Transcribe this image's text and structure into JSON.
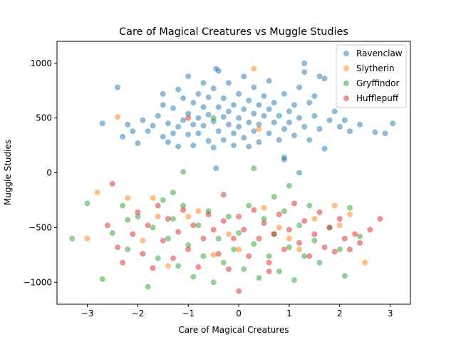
{
  "chart_data": {
    "type": "scatter",
    "title": "Care of Magical Creatures vs Muggle Studies",
    "xlabel": "Care of Magical Creatures",
    "ylabel": "Muggle Studies",
    "xlim": [
      -3.6,
      3.4
    ],
    "ylim": [
      -1200,
      1200
    ],
    "xticks": [
      -3,
      -2,
      -1,
      0,
      1,
      2,
      3
    ],
    "yticks": [
      -1000,
      -500,
      0,
      500,
      1000
    ],
    "grid": false,
    "legend_position": "top-right",
    "series": [
      {
        "name": "Ravenclaw",
        "color": "#1f77b4",
        "points": [
          [
            -2.4,
            780
          ],
          [
            -2.7,
            450
          ],
          [
            -2.3,
            330
          ],
          [
            -2.2,
            440
          ],
          [
            -2.1,
            380
          ],
          [
            -2.0,
            270
          ],
          [
            -1.9,
            480
          ],
          [
            -1.8,
            380
          ],
          [
            -1.7,
            430
          ],
          [
            -1.6,
            520
          ],
          [
            -1.5,
            330
          ],
          [
            -1.5,
            720
          ],
          [
            -1.5,
            620
          ],
          [
            -1.4,
            450
          ],
          [
            -1.4,
            280
          ],
          [
            -1.3,
            360
          ],
          [
            -1.3,
            590
          ],
          [
            -1.2,
            420
          ],
          [
            -1.2,
            760
          ],
          [
            -1.2,
            240
          ],
          [
            -1.1,
            480
          ],
          [
            -1.1,
            680
          ],
          [
            -1.0,
            880
          ],
          [
            -1.0,
            540
          ],
          [
            -1.0,
            350
          ],
          [
            -0.9,
            640
          ],
          [
            -0.9,
            440
          ],
          [
            -0.9,
            250
          ],
          [
            -0.8,
            720
          ],
          [
            -0.8,
            500
          ],
          [
            -0.8,
            360
          ],
          [
            -0.7,
            600
          ],
          [
            -0.7,
            820
          ],
          [
            -0.7,
            430
          ],
          [
            -0.6,
            290
          ],
          [
            -0.6,
            530
          ],
          [
            -0.6,
            690
          ],
          [
            -0.5,
            470
          ],
          [
            -0.5,
            230
          ],
          [
            -0.5,
            770
          ],
          [
            -0.4,
            600
          ],
          [
            -0.4,
            380
          ],
          [
            -0.4,
            930
          ],
          [
            -0.3,
            510
          ],
          [
            -0.3,
            680
          ],
          [
            -0.3,
            300
          ],
          [
            -0.2,
            440
          ],
          [
            -0.2,
            820
          ],
          [
            -0.2,
            560
          ],
          [
            -0.1,
            620
          ],
          [
            -0.1,
            360
          ],
          [
            -0.1,
            250
          ],
          [
            0.0,
            500
          ],
          [
            0.0,
            720
          ],
          [
            0.0,
            420
          ],
          [
            0.1,
            580
          ],
          [
            0.1,
            880
          ],
          [
            0.1,
            320
          ],
          [
            0.2,
            460
          ],
          [
            0.2,
            660
          ],
          [
            0.2,
            240
          ],
          [
            0.3,
            540
          ],
          [
            0.3,
            780
          ],
          [
            0.3,
            380
          ],
          [
            0.4,
            620
          ],
          [
            0.4,
            440
          ],
          [
            0.4,
            280
          ],
          [
            0.5,
            700
          ],
          [
            0.5,
            520
          ],
          [
            0.6,
            360
          ],
          [
            0.6,
            840
          ],
          [
            0.6,
            580
          ],
          [
            0.7,
            460
          ],
          [
            0.7,
            640
          ],
          [
            0.8,
            300
          ],
          [
            0.8,
            520
          ],
          [
            0.9,
            720
          ],
          [
            0.9,
            400
          ],
          [
            0.9,
            140
          ],
          [
            1.0,
            560
          ],
          [
            1.0,
            460
          ],
          [
            1.1,
            620
          ],
          [
            1.1,
            340
          ],
          [
            1.2,
            780
          ],
          [
            1.2,
            500
          ],
          [
            1.3,
            1000
          ],
          [
            1.3,
            420
          ],
          [
            1.4,
            640
          ],
          [
            1.4,
            300
          ],
          [
            1.5,
            520
          ],
          [
            1.5,
            700
          ],
          [
            1.6,
            400
          ],
          [
            1.6,
            880
          ],
          [
            1.7,
            220
          ],
          [
            1.8,
            480
          ],
          [
            1.9,
            560
          ],
          [
            2.0,
            420
          ],
          [
            2.1,
            480
          ],
          [
            2.2,
            380
          ],
          [
            2.4,
            440
          ],
          [
            2.7,
            370
          ],
          [
            2.9,
            360
          ],
          [
            3.05,
            450
          ],
          [
            -0.45,
            40
          ],
          [
            -0.45,
            950
          ],
          [
            0.9,
            120
          ],
          [
            1.2,
            0
          ],
          [
            1.7,
            860
          ],
          [
            1.3,
            920
          ]
        ]
      },
      {
        "name": "Slytherin",
        "color": "#ff7f0e",
        "points": [
          [
            -2.4,
            510
          ],
          [
            0.3,
            950
          ],
          [
            -2.2,
            -230
          ],
          [
            -1.7,
            -230
          ],
          [
            1.0,
            -600
          ],
          [
            -2.8,
            -180
          ],
          [
            -3.0,
            -600
          ],
          [
            2.5,
            -820
          ],
          [
            -1.4,
            -850
          ],
          [
            0.5,
            -320
          ],
          [
            -0.5,
            -750
          ],
          [
            1.5,
            -420
          ],
          [
            2.0,
            -480
          ],
          [
            -1.0,
            -400
          ],
          [
            0.8,
            -500
          ],
          [
            -0.2,
            -560
          ],
          [
            0.4,
            400
          ],
          [
            1.9,
            -300
          ],
          [
            -1.9,
            -620
          ],
          [
            0.0,
            -700
          ],
          [
            2.2,
            -380
          ],
          [
            -0.8,
            -350
          ],
          [
            1.2,
            -700
          ],
          [
            -1.6,
            -400
          ]
        ]
      },
      {
        "name": "Gryffindor",
        "color": "#2ca02c",
        "points": [
          [
            -3.3,
            -600
          ],
          [
            -3.0,
            -280
          ],
          [
            -2.7,
            -970
          ],
          [
            -2.5,
            -550
          ],
          [
            -2.3,
            -300
          ],
          [
            -2.2,
            -700
          ],
          [
            -2.0,
            -400
          ],
          [
            -1.8,
            -1040
          ],
          [
            -1.7,
            -500
          ],
          [
            -1.6,
            -780
          ],
          [
            -1.5,
            -250
          ],
          [
            -1.4,
            -600
          ],
          [
            -1.3,
            -420
          ],
          [
            -1.2,
            -850
          ],
          [
            -1.1,
            -300
          ],
          [
            -1.0,
            -660
          ],
          [
            -0.9,
            -950
          ],
          [
            -0.8,
            -480
          ],
          [
            -0.7,
            -760
          ],
          [
            -0.6,
            -350
          ],
          [
            -0.5,
            -1000
          ],
          [
            -0.4,
            -600
          ],
          [
            -0.3,
            -820
          ],
          [
            -0.2,
            -400
          ],
          [
            -0.1,
            -700
          ],
          [
            0.0,
            -550
          ],
          [
            0.1,
            -880
          ],
          [
            0.2,
            -300
          ],
          [
            0.3,
            -650
          ],
          [
            0.4,
            -960
          ],
          [
            0.5,
            -420
          ],
          [
            0.6,
            -760
          ],
          [
            0.7,
            -560
          ],
          [
            0.8,
            -900
          ],
          [
            0.9,
            -350
          ],
          [
            1.0,
            -680
          ],
          [
            1.1,
            -980
          ],
          [
            1.2,
            -480
          ],
          [
            1.3,
            -760
          ],
          [
            1.4,
            -300
          ],
          [
            1.5,
            -620
          ],
          [
            1.6,
            -820
          ],
          [
            1.8,
            -500
          ],
          [
            2.0,
            -700
          ],
          [
            2.1,
            -940
          ],
          [
            2.2,
            -320
          ],
          [
            2.4,
            -580
          ],
          [
            -1.1,
            10
          ],
          [
            0.3,
            40
          ],
          [
            -1.3,
            -180
          ],
          [
            0.7,
            -220
          ],
          [
            1.0,
            -120
          ],
          [
            -0.5,
            500
          ],
          [
            -2.2,
            -430
          ]
        ]
      },
      {
        "name": "Hufflepuff",
        "color": "#d62728",
        "points": [
          [
            -2.6,
            -480
          ],
          [
            -2.5,
            -100
          ],
          [
            -2.4,
            -680
          ],
          [
            -2.3,
            -820
          ],
          [
            -2.1,
            -560
          ],
          [
            -2.0,
            -360
          ],
          [
            -1.9,
            -740
          ],
          [
            -1.8,
            -480
          ],
          [
            -1.7,
            -870
          ],
          [
            -1.6,
            -300
          ],
          [
            -1.5,
            -620
          ],
          [
            -1.4,
            -420
          ],
          [
            -1.3,
            -780
          ],
          [
            -1.2,
            -540
          ],
          [
            -1.1,
            -340
          ],
          [
            -1.0,
            -700
          ],
          [
            -0.9,
            -480
          ],
          [
            -0.8,
            -860
          ],
          [
            -0.7,
            -600
          ],
          [
            -0.6,
            -380
          ],
          [
            -0.5,
            -520
          ],
          [
            -0.4,
            -740
          ],
          [
            -0.3,
            -440
          ],
          [
            -0.2,
            -880
          ],
          [
            -0.1,
            -600
          ],
          [
            0.0,
            -400
          ],
          [
            0.0,
            -1080
          ],
          [
            0.1,
            -520
          ],
          [
            0.2,
            -760
          ],
          [
            0.3,
            -340
          ],
          [
            0.4,
            -600
          ],
          [
            0.5,
            -460
          ],
          [
            0.6,
            -820
          ],
          [
            0.7,
            -560
          ],
          [
            0.8,
            -380
          ],
          [
            0.9,
            -700
          ],
          [
            1.0,
            -520
          ],
          [
            1.1,
            -280
          ],
          [
            1.2,
            -640
          ],
          [
            1.3,
            -440
          ],
          [
            1.4,
            -760
          ],
          [
            1.5,
            -560
          ],
          [
            1.6,
            -360
          ],
          [
            1.7,
            -680
          ],
          [
            1.8,
            -500
          ],
          [
            1.9,
            -720
          ],
          [
            2.0,
            -420
          ],
          [
            2.1,
            -600
          ],
          [
            2.2,
            -700
          ],
          [
            2.3,
            -560
          ],
          [
            2.4,
            -640
          ],
          [
            2.6,
            -520
          ],
          [
            2.8,
            -420
          ],
          [
            -1.0,
            500
          ],
          [
            0.6,
            -900
          ],
          [
            -0.3,
            -200
          ]
        ]
      }
    ]
  }
}
